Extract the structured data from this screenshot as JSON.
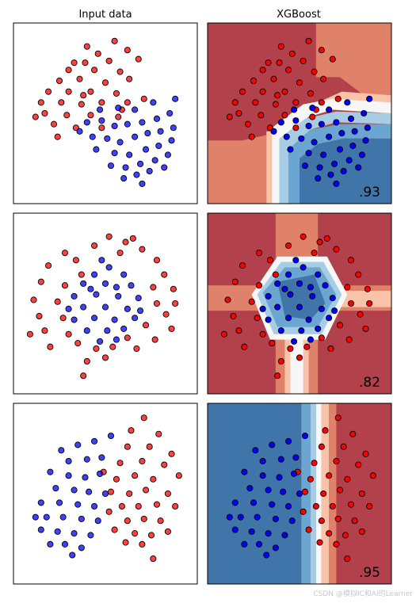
{
  "column_titles": {
    "input": "Input data",
    "model": "XGBoost"
  },
  "watermark": "CSDN @模拟IC和AI的Learner",
  "colors": {
    "red_point": "#ff0000",
    "blue_point": "#0000ff",
    "red_region_dark": "#b2414b",
    "red_region_mid": "#e0826a",
    "red_region_light": "#f9c3aa",
    "white_band": "#f7f7f7",
    "blue_region_light": "#a6cde3",
    "blue_region_mid": "#6aa6d1",
    "blue_region_dark": "#4075a9"
  },
  "chart_data": [
    {
      "type": "scatter",
      "dataset": "moons",
      "score": ".93",
      "decision_regions": "blocky step boundary: red upper-left, blue lower-right",
      "series": [
        {
          "class": "red",
          "points": [
            [
              0.55,
              0.9
            ],
            [
              0.46,
              0.83
            ],
            [
              0.62,
              0.85
            ],
            [
              0.39,
              0.78
            ],
            [
              0.52,
              0.79
            ],
            [
              0.68,
              0.8
            ],
            [
              0.3,
              0.74
            ],
            [
              0.44,
              0.74
            ],
            [
              0.58,
              0.73
            ],
            [
              0.25,
              0.68
            ],
            [
              0.36,
              0.69
            ],
            [
              0.5,
              0.67
            ],
            [
              0.63,
              0.69
            ],
            [
              0.19,
              0.62
            ],
            [
              0.3,
              0.62
            ],
            [
              0.42,
              0.62
            ],
            [
              0.56,
              0.61
            ],
            [
              0.15,
              0.56
            ],
            [
              0.26,
              0.56
            ],
            [
              0.37,
              0.55
            ],
            [
              0.48,
              0.56
            ],
            [
              0.62,
              0.56
            ],
            [
              0.71,
              0.58
            ],
            [
              0.17,
              0.5
            ],
            [
              0.29,
              0.49
            ],
            [
              0.42,
              0.49
            ],
            [
              0.57,
              0.48
            ],
            [
              0.22,
              0.44
            ],
            [
              0.34,
              0.42
            ],
            [
              0.12,
              0.48
            ],
            [
              0.24,
              0.37
            ],
            [
              0.48,
              0.42
            ],
            [
              0.59,
              0.52
            ],
            [
              0.38,
              0.6
            ],
            [
              0.33,
              0.78
            ],
            [
              0.4,
              0.87
            ]
          ]
        },
        {
          "class": "blue",
          "points": [
            [
              0.4,
              0.45
            ],
            [
              0.48,
              0.46
            ],
            [
              0.55,
              0.43
            ],
            [
              0.62,
              0.44
            ],
            [
              0.7,
              0.45
            ],
            [
              0.78,
              0.47
            ],
            [
              0.85,
              0.5
            ],
            [
              0.43,
              0.37
            ],
            [
              0.51,
              0.36
            ],
            [
              0.58,
              0.34
            ],
            [
              0.66,
              0.37
            ],
            [
              0.73,
              0.39
            ],
            [
              0.8,
              0.4
            ],
            [
              0.87,
              0.42
            ],
            [
              0.45,
              0.3
            ],
            [
              0.55,
              0.28
            ],
            [
              0.63,
              0.27
            ],
            [
              0.72,
              0.3
            ],
            [
              0.79,
              0.32
            ],
            [
              0.86,
              0.35
            ],
            [
              0.53,
              0.21
            ],
            [
              0.61,
              0.2
            ],
            [
              0.69,
              0.22
            ],
            [
              0.77,
              0.24
            ],
            [
              0.84,
              0.27
            ],
            [
              0.6,
              0.14
            ],
            [
              0.67,
              0.16
            ],
            [
              0.74,
              0.18
            ],
            [
              0.57,
              0.53
            ],
            [
              0.66,
              0.52
            ],
            [
              0.76,
              0.56
            ],
            [
              0.88,
              0.58
            ],
            [
              0.47,
              0.52
            ],
            [
              0.36,
              0.4
            ],
            [
              0.82,
              0.2
            ],
            [
              0.7,
              0.11
            ]
          ]
        }
      ]
    },
    {
      "type": "scatter",
      "dataset": "circles",
      "score": ".82",
      "decision_regions": "blue pentagonal core at center, red elsewhere with cross-shaped light bands",
      "series": [
        {
          "class": "red",
          "points": [
            [
              0.52,
              0.87
            ],
            [
              0.61,
              0.84
            ],
            [
              0.44,
              0.82
            ],
            [
              0.7,
              0.8
            ],
            [
              0.28,
              0.78
            ],
            [
              0.34,
              0.74
            ],
            [
              0.78,
              0.74
            ],
            [
              0.19,
              0.71
            ],
            [
              0.82,
              0.66
            ],
            [
              0.15,
              0.62
            ],
            [
              0.28,
              0.6
            ],
            [
              0.76,
              0.59
            ],
            [
              0.87,
              0.58
            ],
            [
              0.11,
              0.52
            ],
            [
              0.24,
              0.51
            ],
            [
              0.78,
              0.5
            ],
            [
              0.88,
              0.5
            ],
            [
              0.83,
              0.44
            ],
            [
              0.14,
              0.43
            ],
            [
              0.27,
              0.42
            ],
            [
              0.72,
              0.38
            ],
            [
              0.86,
              0.36
            ],
            [
              0.17,
              0.35
            ],
            [
              0.3,
              0.33
            ],
            [
              0.62,
              0.31
            ],
            [
              0.77,
              0.3
            ],
            [
              0.35,
              0.28
            ],
            [
              0.45,
              0.25
            ],
            [
              0.54,
              0.26
            ],
            [
              0.67,
              0.25
            ],
            [
              0.4,
              0.18
            ],
            [
              0.5,
              0.2
            ],
            [
              0.38,
              0.1
            ],
            [
              0.2,
              0.26
            ],
            [
              0.09,
              0.33
            ],
            [
              0.65,
              0.86
            ],
            [
              0.58,
              0.78
            ],
            [
              0.37,
              0.66
            ]
          ]
        },
        {
          "class": "blue",
          "points": [
            [
              0.52,
              0.7
            ],
            [
              0.44,
              0.66
            ],
            [
              0.6,
              0.66
            ],
            [
              0.38,
              0.61
            ],
            [
              0.5,
              0.61
            ],
            [
              0.64,
              0.6
            ],
            [
              0.33,
              0.54
            ],
            [
              0.45,
              0.55
            ],
            [
              0.57,
              0.54
            ],
            [
              0.68,
              0.53
            ],
            [
              0.38,
              0.48
            ],
            [
              0.5,
              0.48
            ],
            [
              0.62,
              0.47
            ],
            [
              0.33,
              0.41
            ],
            [
              0.44,
              0.42
            ],
            [
              0.55,
              0.41
            ],
            [
              0.66,
              0.42
            ],
            [
              0.4,
              0.35
            ],
            [
              0.51,
              0.35
            ],
            [
              0.6,
              0.36
            ],
            [
              0.47,
              0.29
            ],
            [
              0.56,
              0.3
            ],
            [
              0.3,
              0.47
            ],
            [
              0.69,
              0.46
            ],
            [
              0.42,
              0.58
            ],
            [
              0.56,
              0.59
            ],
            [
              0.48,
              0.74
            ]
          ]
        }
      ]
    },
    {
      "type": "scatter",
      "dataset": "linearly separable",
      "score": ".95",
      "decision_regions": "vertical boundary: blue left, red right",
      "series": [
        {
          "class": "red",
          "points": [
            [
              0.71,
              0.92
            ],
            [
              0.64,
              0.85
            ],
            [
              0.79,
              0.83
            ],
            [
              0.62,
              0.76
            ],
            [
              0.74,
              0.76
            ],
            [
              0.86,
              0.72
            ],
            [
              0.58,
              0.67
            ],
            [
              0.7,
              0.68
            ],
            [
              0.82,
              0.66
            ],
            [
              0.9,
              0.6
            ],
            [
              0.56,
              0.58
            ],
            [
              0.66,
              0.6
            ],
            [
              0.76,
              0.58
            ],
            [
              0.53,
              0.51
            ],
            [
              0.63,
              0.5
            ],
            [
              0.72,
              0.52
            ],
            [
              0.84,
              0.5
            ],
            [
              0.59,
              0.43
            ],
            [
              0.68,
              0.43
            ],
            [
              0.78,
              0.44
            ],
            [
              0.88,
              0.43
            ],
            [
              0.62,
              0.35
            ],
            [
              0.71,
              0.36
            ],
            [
              0.8,
              0.35
            ],
            [
              0.66,
              0.28
            ],
            [
              0.75,
              0.27
            ],
            [
              0.84,
              0.29
            ],
            [
              0.7,
              0.22
            ],
            [
              0.61,
              0.23
            ],
            [
              0.52,
              0.4
            ],
            [
              0.49,
              0.62
            ],
            [
              0.76,
              0.14
            ],
            [
              0.55,
              0.3
            ]
          ]
        },
        {
          "class": "blue",
          "points": [
            [
              0.26,
              0.74
            ],
            [
              0.35,
              0.77
            ],
            [
              0.44,
              0.79
            ],
            [
              0.53,
              0.82
            ],
            [
              0.3,
              0.68
            ],
            [
              0.4,
              0.69
            ],
            [
              0.48,
              0.7
            ],
            [
              0.2,
              0.62
            ],
            [
              0.3,
              0.6
            ],
            [
              0.39,
              0.59
            ],
            [
              0.47,
              0.61
            ],
            [
              0.23,
              0.53
            ],
            [
              0.33,
              0.52
            ],
            [
              0.41,
              0.51
            ],
            [
              0.15,
              0.45
            ],
            [
              0.25,
              0.45
            ],
            [
              0.35,
              0.44
            ],
            [
              0.44,
              0.43
            ],
            [
              0.18,
              0.37
            ],
            [
              0.27,
              0.37
            ],
            [
              0.37,
              0.36
            ],
            [
              0.46,
              0.35
            ],
            [
              0.15,
              0.3
            ],
            [
              0.24,
              0.29
            ],
            [
              0.33,
              0.28
            ],
            [
              0.42,
              0.27
            ],
            [
              0.37,
              0.2
            ],
            [
              0.28,
              0.22
            ],
            [
              0.12,
              0.37
            ],
            [
              0.5,
              0.5
            ],
            [
              0.2,
              0.22
            ],
            [
              0.32,
              0.16
            ]
          ]
        }
      ]
    }
  ]
}
